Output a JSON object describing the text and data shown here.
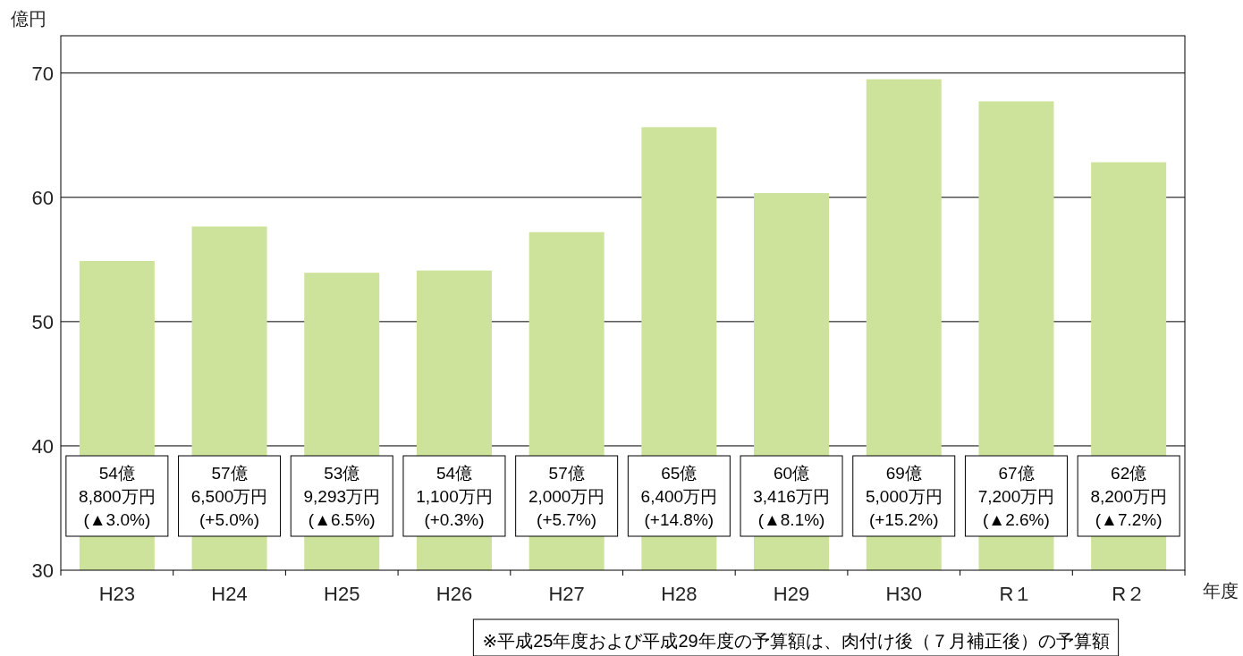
{
  "chart_data": {
    "type": "bar",
    "ylabel": "億円",
    "xlabel": "年度",
    "categories": [
      "H23",
      "H24",
      "H25",
      "H26",
      "H27",
      "H28",
      "H29",
      "H30",
      "R１",
      "R２"
    ],
    "values": [
      54.88,
      57.65,
      53.93,
      54.11,
      57.2,
      65.64,
      60.34,
      69.5,
      67.72,
      62.82
    ],
    "color": "#cde29b",
    "ylim": [
      30,
      73
    ],
    "yticks": [
      30,
      40,
      50,
      60,
      70
    ],
    "grid": "y",
    "annotations": [
      "54億\n8,800万円\n(▲3.0%)",
      "57億\n6,500万円\n(+5.0%)",
      "53億\n9,293万円\n(▲6.5%)",
      "54億\n1,100万円\n(+0.3%)",
      "57億\n2,000万円\n(+5.7%)",
      "65億\n6,400万円\n(+14.8%)",
      "60億\n3,416万円\n(▲8.1%)",
      "69億\n5,000万円\n(+15.2%)",
      "67億\n7,200万円\n(▲2.6%)",
      "62億\n8,200万円\n(▲7.2%)",
      "※平成25年度および平成29年度の予算額は、肉付け後（７月補正後）の予算額"
    ]
  }
}
